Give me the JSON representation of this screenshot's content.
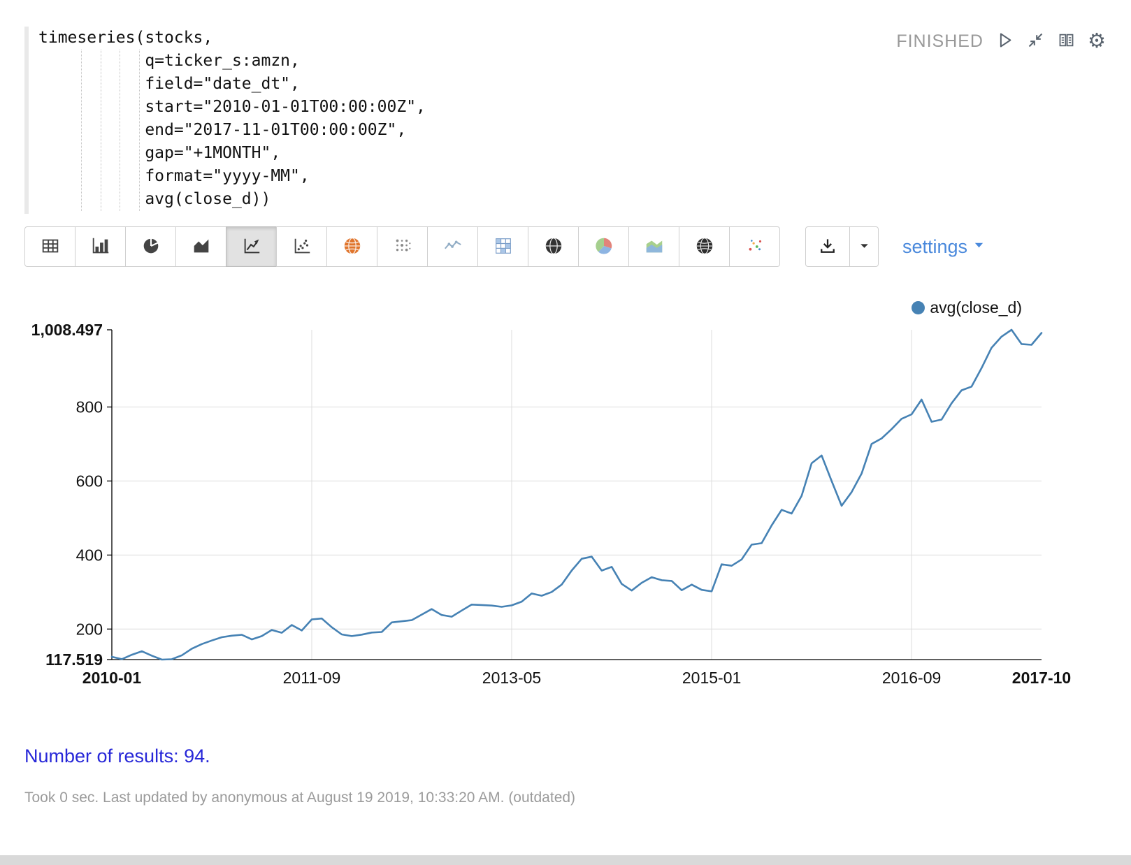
{
  "editor": {
    "code": "timeseries(stocks,\n           q=ticker_s:amzn,\n           field=\"date_dt\",\n           start=\"2010-01-01T00:00:00Z\",\n           end=\"2017-11-01T00:00:00Z\",\n           gap=\"+1MONTH\",\n           format=\"yyyy-MM\",\n           avg(close_d))",
    "status": "FINISHED",
    "status_icons": [
      "play-icon",
      "collapse-icon",
      "reader-icon",
      "gear-icon"
    ]
  },
  "toolbar": {
    "chart_buttons": [
      "table",
      "bar-chart",
      "pie-chart",
      "area-chart",
      "line-chart",
      "scatter-chart",
      "map-orange",
      "bubble-chart",
      "sparkline",
      "heatmap",
      "globe",
      "pie-colored",
      "area-colored",
      "globe-2",
      "scatter-colored"
    ],
    "selected_button": "line-chart",
    "download_icon": "download-icon",
    "settings_label": "settings"
  },
  "legend": {
    "label": "avg(close_d)",
    "color": "#4682b4"
  },
  "results": {
    "count_text": "Number of results: 94."
  },
  "footer": {
    "text": "Took 0 sec. Last updated by anonymous at August 19 2019, 10:33:20 AM. (outdated)"
  },
  "colors": {
    "accent_blue": "#4a89dc",
    "line_blue": "#4682b4",
    "results_blue": "#2727d8",
    "status_gray": "#999999"
  },
  "chart_data": {
    "type": "line",
    "title": "",
    "xlabel": "",
    "ylabel": "",
    "grid": true,
    "legend_position": "top-right",
    "line_color": "#4682b4",
    "ylim": [
      117.519,
      1008.497
    ],
    "y_ticks": [
      200,
      400,
      600,
      800
    ],
    "y_axis_labels": [
      {
        "text": "1,008.497",
        "value": 1008.497,
        "bold": true
      },
      {
        "text": "800",
        "value": 800,
        "bold": false
      },
      {
        "text": "600",
        "value": 600,
        "bold": false
      },
      {
        "text": "400",
        "value": 400,
        "bold": false
      },
      {
        "text": "200",
        "value": 200,
        "bold": false
      },
      {
        "text": "117.519",
        "value": 117.519,
        "bold": true
      }
    ],
    "x_axis_labels": [
      {
        "text": "2010-01",
        "index": 0,
        "bold": true
      },
      {
        "text": "2011-09",
        "index": 20,
        "bold": false
      },
      {
        "text": "2013-05",
        "index": 40,
        "bold": false
      },
      {
        "text": "2015-01",
        "index": 60,
        "bold": false
      },
      {
        "text": "2016-09",
        "index": 80,
        "bold": false
      },
      {
        "text": "2017-10",
        "index": 93,
        "bold": true
      }
    ],
    "x_start": "2010-01",
    "x_end": "2017-10",
    "x_gap": "+1MONTH",
    "num_points": 94,
    "series": [
      {
        "name": "avg(close_d)",
        "values": [
          125.0,
          118.6,
          130.5,
          140.0,
          128.0,
          117.519,
          118.4,
          129.0,
          147.0,
          159.5,
          169.0,
          178.0,
          182.0,
          184.5,
          172.0,
          181.0,
          197.5,
          190.0,
          211.0,
          196.0,
          226.0,
          228.5,
          205.0,
          185.5,
          181.0,
          185.0,
          190.5,
          192.0,
          218.0,
          221.0,
          224.0,
          239.0,
          254.0,
          238.0,
          233.5,
          250.0,
          266.0,
          265.0,
          263.5,
          260.0,
          264.0,
          274.0,
          296.0,
          290.0,
          300.0,
          320.0,
          358.0,
          390.0,
          395.5,
          358.0,
          368.0,
          322.0,
          304.0,
          325.0,
          340.0,
          332.0,
          330.0,
          305.0,
          320.0,
          306.0,
          302.0,
          375.0,
          371.0,
          388.0,
          428.0,
          432.0,
          480.0,
          522.0,
          512.0,
          560.0,
          648.0,
          669.0,
          600.0,
          533.0,
          570.0,
          620.0,
          700.0,
          715.0,
          740.0,
          768.0,
          780.0,
          820.0,
          760.0,
          766.0,
          810.0,
          845.0,
          855.0,
          905.0,
          960.0,
          990.0,
          1008.497,
          970.0,
          968.0,
          1000.0
        ]
      }
    ]
  }
}
